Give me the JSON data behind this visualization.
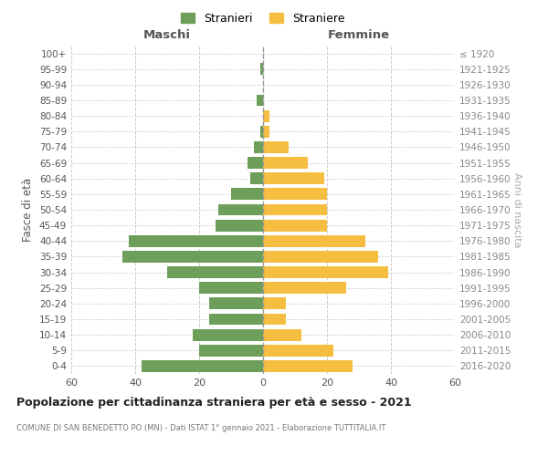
{
  "age_groups": [
    "0-4",
    "5-9",
    "10-14",
    "15-19",
    "20-24",
    "25-29",
    "30-34",
    "35-39",
    "40-44",
    "45-49",
    "50-54",
    "55-59",
    "60-64",
    "65-69",
    "70-74",
    "75-79",
    "80-84",
    "85-89",
    "90-94",
    "95-99",
    "100+"
  ],
  "birth_years": [
    "2016-2020",
    "2011-2015",
    "2006-2010",
    "2001-2005",
    "1996-2000",
    "1991-1995",
    "1986-1990",
    "1981-1985",
    "1976-1980",
    "1971-1975",
    "1966-1970",
    "1961-1965",
    "1956-1960",
    "1951-1955",
    "1946-1950",
    "1941-1945",
    "1936-1940",
    "1931-1935",
    "1926-1930",
    "1921-1925",
    "≤ 1920"
  ],
  "males": [
    38,
    20,
    22,
    17,
    17,
    20,
    30,
    44,
    42,
    15,
    14,
    10,
    4,
    5,
    3,
    1,
    0,
    2,
    0,
    1,
    0
  ],
  "females": [
    28,
    22,
    12,
    7,
    7,
    26,
    39,
    36,
    32,
    20,
    20,
    20,
    19,
    14,
    8,
    2,
    2,
    0,
    0,
    0,
    0
  ],
  "male_color": "#6d9e5a",
  "female_color": "#f5be41",
  "title": "Popolazione per cittadinanza straniera per età e sesso - 2021",
  "subtitle": "COMUNE DI SAN BENEDETTO PO (MN) - Dati ISTAT 1° gennaio 2021 - Elaborazione TUTTITALIA.IT",
  "ylabel_left": "Fasce di età",
  "ylabel_right": "Anni di nascita",
  "xlim": 60,
  "legend_male": "Stranieri",
  "legend_female": "Straniere",
  "maschi_label": "Maschi",
  "femmine_label": "Femmine",
  "background_color": "#ffffff",
  "grid_color": "#cccccc",
  "bar_height": 0.75
}
